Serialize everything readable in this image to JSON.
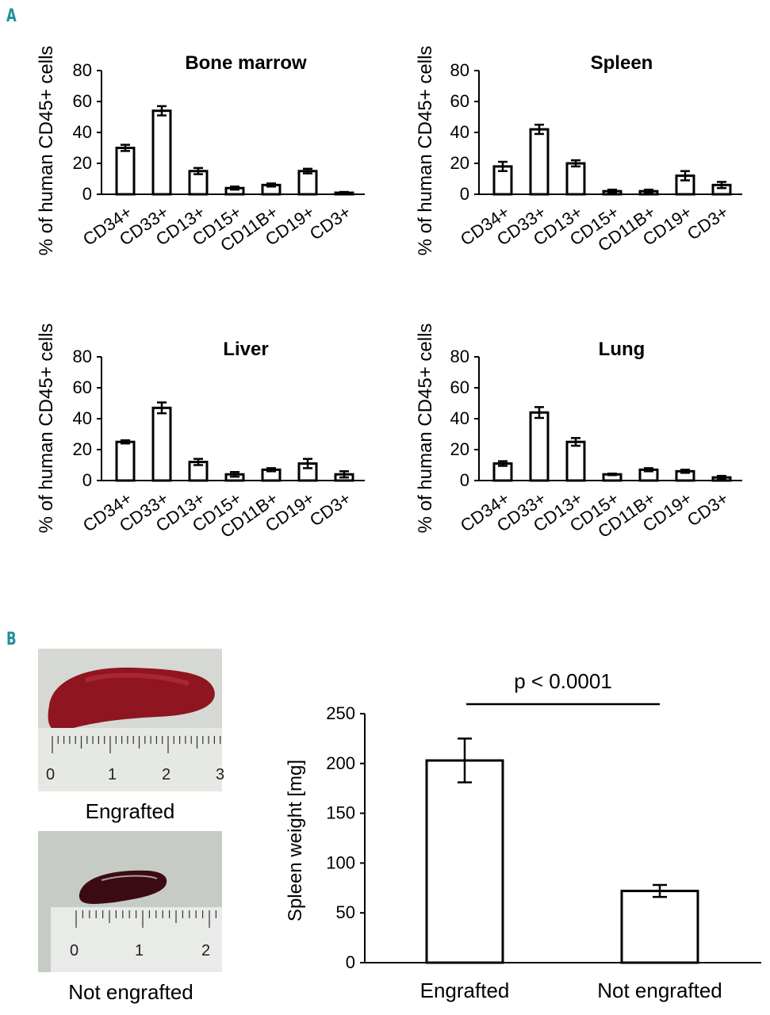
{
  "panel_labels": {
    "a": "A",
    "b": "B"
  },
  "colors": {
    "panel_label": "#1f8f9a",
    "bar_fill": "#ffffff",
    "bar_stroke": "#000000"
  },
  "chart_data": [
    {
      "type": "bar",
      "title": "Bone marrow",
      "ylabel": "% of human CD45+ cells",
      "ylim": [
        0,
        80
      ],
      "yticks": [
        0,
        20,
        40,
        60,
        80
      ],
      "categories": [
        "CD34+",
        "CD33+",
        "CD13+",
        "CD15+",
        "CD11B+",
        "CD19+",
        "CD3+"
      ],
      "values": [
        30,
        54,
        15,
        4,
        6,
        15,
        1
      ],
      "errors": [
        2,
        3,
        2,
        1,
        1,
        1.5,
        0.5
      ]
    },
    {
      "type": "bar",
      "title": "Spleen",
      "ylabel": "% of human CD45+ cells",
      "ylim": [
        0,
        80
      ],
      "yticks": [
        0,
        20,
        40,
        60,
        80
      ],
      "categories": [
        "CD34+",
        "CD33+",
        "CD13+",
        "CD15+",
        "CD11B+",
        "CD19+",
        "CD3+"
      ],
      "values": [
        18,
        42,
        20,
        2,
        2,
        12,
        6
      ],
      "errors": [
        3,
        3,
        2,
        1,
        1,
        3,
        2
      ]
    },
    {
      "type": "bar",
      "title": "Liver",
      "ylabel": "% of human CD45+ cells",
      "ylim": [
        0,
        80
      ],
      "yticks": [
        0,
        20,
        40,
        60,
        80
      ],
      "categories": [
        "CD34+",
        "CD33+",
        "CD13+",
        "CD15+",
        "CD11B+",
        "CD19+",
        "CD3+"
      ],
      "values": [
        25,
        47,
        12,
        4,
        7,
        11,
        4
      ],
      "errors": [
        1,
        3.5,
        2,
        1.5,
        1,
        3,
        2
      ]
    },
    {
      "type": "bar",
      "title": "Lung",
      "ylabel": "% of human CD45+ cells",
      "ylim": [
        0,
        80
      ],
      "yticks": [
        0,
        20,
        40,
        60,
        80
      ],
      "categories": [
        "CD34+",
        "CD33+",
        "CD13+",
        "CD15+",
        "CD11B+",
        "CD19+",
        "CD3+"
      ],
      "values": [
        11,
        44,
        25,
        4,
        7,
        6,
        2
      ],
      "errors": [
        1.5,
        3.5,
        2.5,
        0.5,
        1,
        1,
        1
      ]
    },
    {
      "type": "bar",
      "title": "",
      "ylabel": "Spleen weight [mg]",
      "ylim": [
        0,
        250
      ],
      "yticks": [
        0,
        50,
        100,
        150,
        200,
        250
      ],
      "categories": [
        "Engrafted",
        "Not engrafted"
      ],
      "values": [
        203,
        72
      ],
      "errors": [
        22,
        6
      ],
      "annotation": "p < 0.0001"
    }
  ],
  "photos": {
    "engrafted": {
      "caption": "Engrafted",
      "ruler_numbers": [
        "0",
        "1",
        "2",
        "3"
      ]
    },
    "not_engrafted": {
      "caption": "Not engrafted",
      "ruler_numbers": [
        "0",
        "1",
        "2"
      ]
    }
  }
}
